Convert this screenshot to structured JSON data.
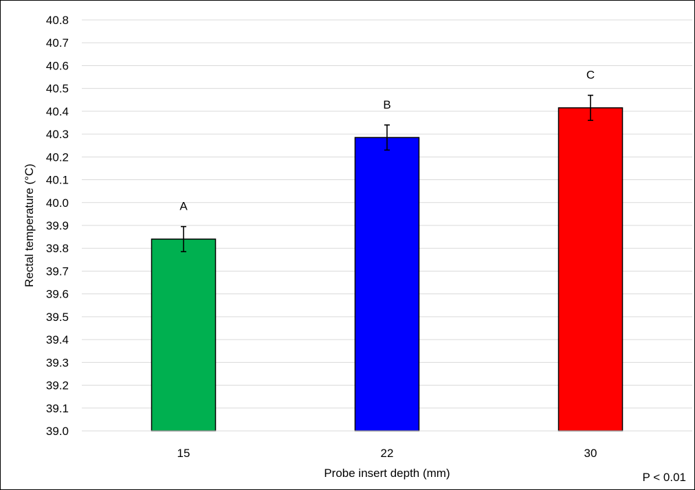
{
  "chart_data": {
    "type": "bar",
    "title": "",
    "xlabel": "Probe insert depth (mm)",
    "ylabel": "Rectal temperature (°C)",
    "categories": [
      "15",
      "22",
      "30"
    ],
    "values": [
      39.84,
      40.285,
      40.415
    ],
    "error": [
      0.055,
      0.055,
      0.055
    ],
    "group_letters": [
      "A",
      "B",
      "C"
    ],
    "colors": [
      "#00b050",
      "#0000ff",
      "#ff0000"
    ],
    "ylim": [
      39.0,
      40.8
    ],
    "ytick_step": 0.1,
    "yticks": [
      "39.0",
      "39.1",
      "39.2",
      "39.3",
      "39.4",
      "39.5",
      "39.6",
      "39.7",
      "39.8",
      "39.9",
      "40.0",
      "40.1",
      "40.2",
      "40.3",
      "40.4",
      "40.5",
      "40.6",
      "40.7",
      "40.8"
    ],
    "grid": true,
    "legend": "none",
    "annotation": "P < 0.01"
  }
}
